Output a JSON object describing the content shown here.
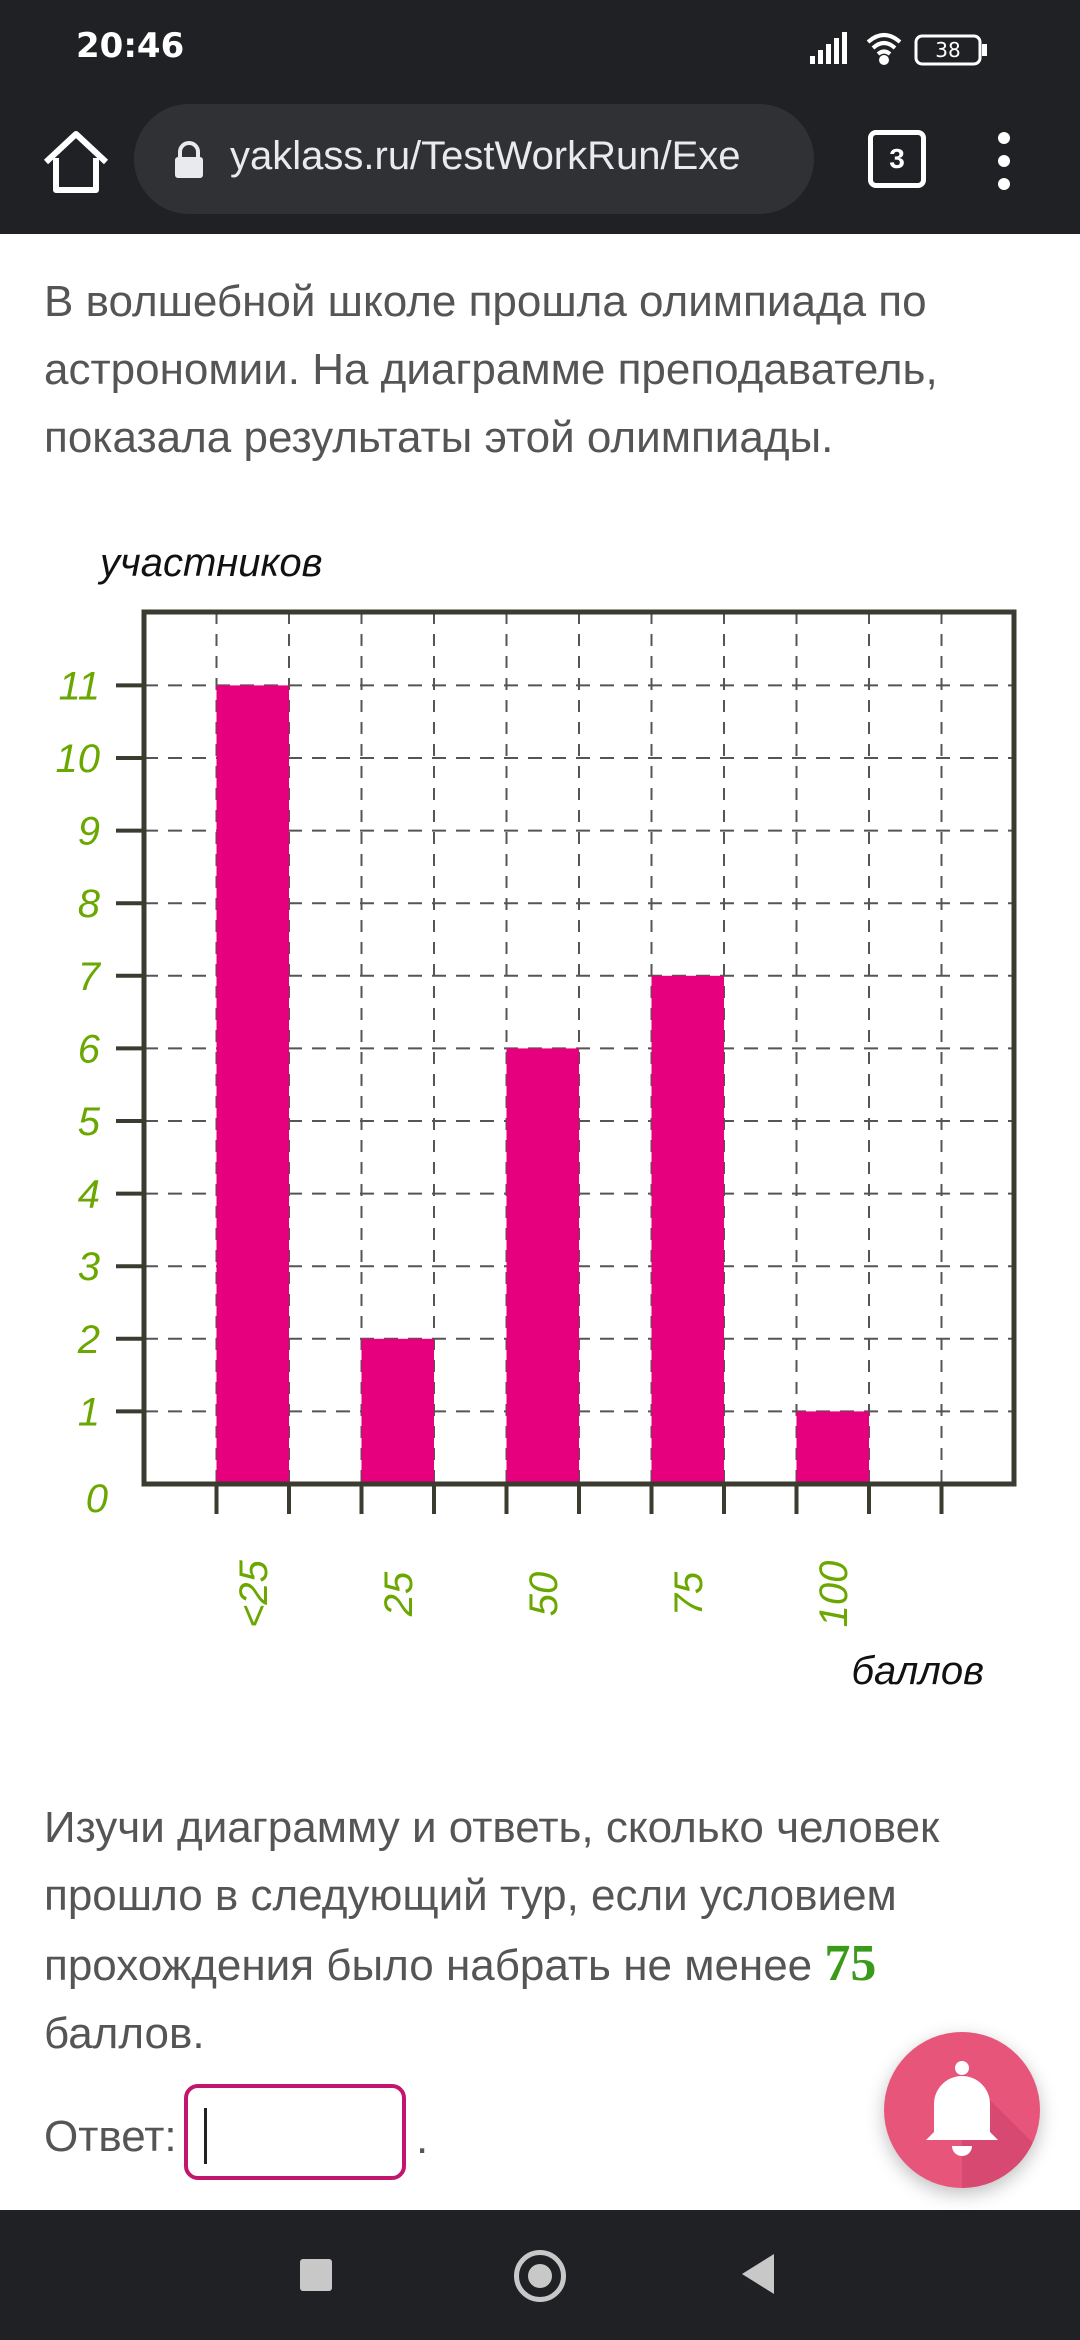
{
  "status_bar": {
    "time": "20:46",
    "battery": "38"
  },
  "browser": {
    "url": "yaklass.ru/TestWorkRun/Exe",
    "tab_count": "3"
  },
  "task": {
    "intro_lines": [
      "В волшебной школе прошла олимпиада по",
      "астрономии. На диаграмме преподаватель,",
      "показала результаты этой олимпиады."
    ],
    "question_lines": [
      "Изучи диаграмму и ответь, сколько человек",
      "прошло в следующий тур, если условием"
    ],
    "question_line3_before": "прохождения было набрать не менее ",
    "question_number": "75",
    "question_line3_after": " баллов."
  },
  "answer": {
    "label": "Ответ:",
    "value": "",
    "suffix": "."
  },
  "colors": {
    "bar": "#e6007e",
    "axis_labels": "#6aa700",
    "toolbar": "#202124",
    "input_border": "#c2166e"
  },
  "icons": [
    "home-icon",
    "lock-icon",
    "tabs-icon",
    "more-vert-icon",
    "bell-icon",
    "nav-square-icon",
    "nav-home-icon",
    "nav-back-icon"
  ],
  "chart_data": {
    "type": "bar",
    "ylabel": "участников",
    "xlabel": "баллов",
    "categories": [
      "<25",
      "25",
      "50",
      "75",
      "100"
    ],
    "values": [
      11,
      2,
      6,
      7,
      1
    ],
    "ylim": [
      0,
      12
    ],
    "yticks": [
      "0",
      "1",
      "2",
      "3",
      "4",
      "5",
      "6",
      "7",
      "8",
      "9",
      "10",
      "11"
    ],
    "grid": true
  }
}
